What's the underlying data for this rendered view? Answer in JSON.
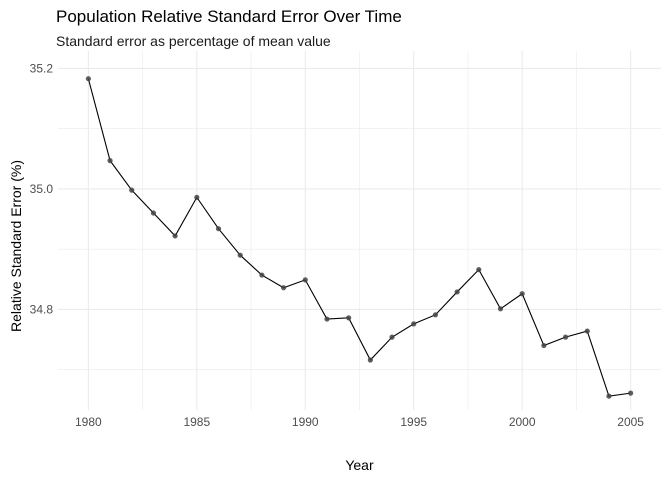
{
  "chart_data": {
    "type": "line",
    "title": "Population Relative Standard Error Over Time",
    "subtitle": "Standard error as percentage of mean value",
    "xlabel": "Year",
    "ylabel": "Relative Standard Error (%)",
    "xlim": [
      1978.6,
      2006.4
    ],
    "ylim": [
      34.633,
      35.229
    ],
    "xticks": [
      1980,
      1985,
      1990,
      1995,
      2000,
      2005
    ],
    "yticks": [
      34.8,
      35.0,
      35.2
    ],
    "xtick_labels": [
      "1980",
      "1985",
      "1990",
      "1995",
      "2000",
      "2005"
    ],
    "ytick_labels": [
      "34.8",
      "35.0",
      "35.2"
    ],
    "grid": true,
    "series": [
      {
        "x": [
          1980,
          1981,
          1982,
          1983,
          1984,
          1985,
          1986,
          1987,
          1988,
          1989,
          1990,
          1991,
          1992,
          1993,
          1994,
          1995,
          1996,
          1997,
          1998,
          1999,
          2000,
          2001,
          2002,
          2003,
          2004,
          2005
        ],
        "values": [
          35.183,
          35.047,
          34.998,
          34.96,
          34.922,
          34.986,
          34.934,
          34.89,
          34.857,
          34.836,
          34.849,
          34.784,
          34.786,
          34.716,
          34.754,
          34.776,
          34.791,
          34.829,
          34.866,
          34.801,
          34.826,
          34.74,
          34.754,
          34.764,
          34.656,
          34.661
        ]
      }
    ],
    "colors": {
      "line": "#000000",
      "point": "#444444",
      "grid": "#ebebeb"
    }
  }
}
